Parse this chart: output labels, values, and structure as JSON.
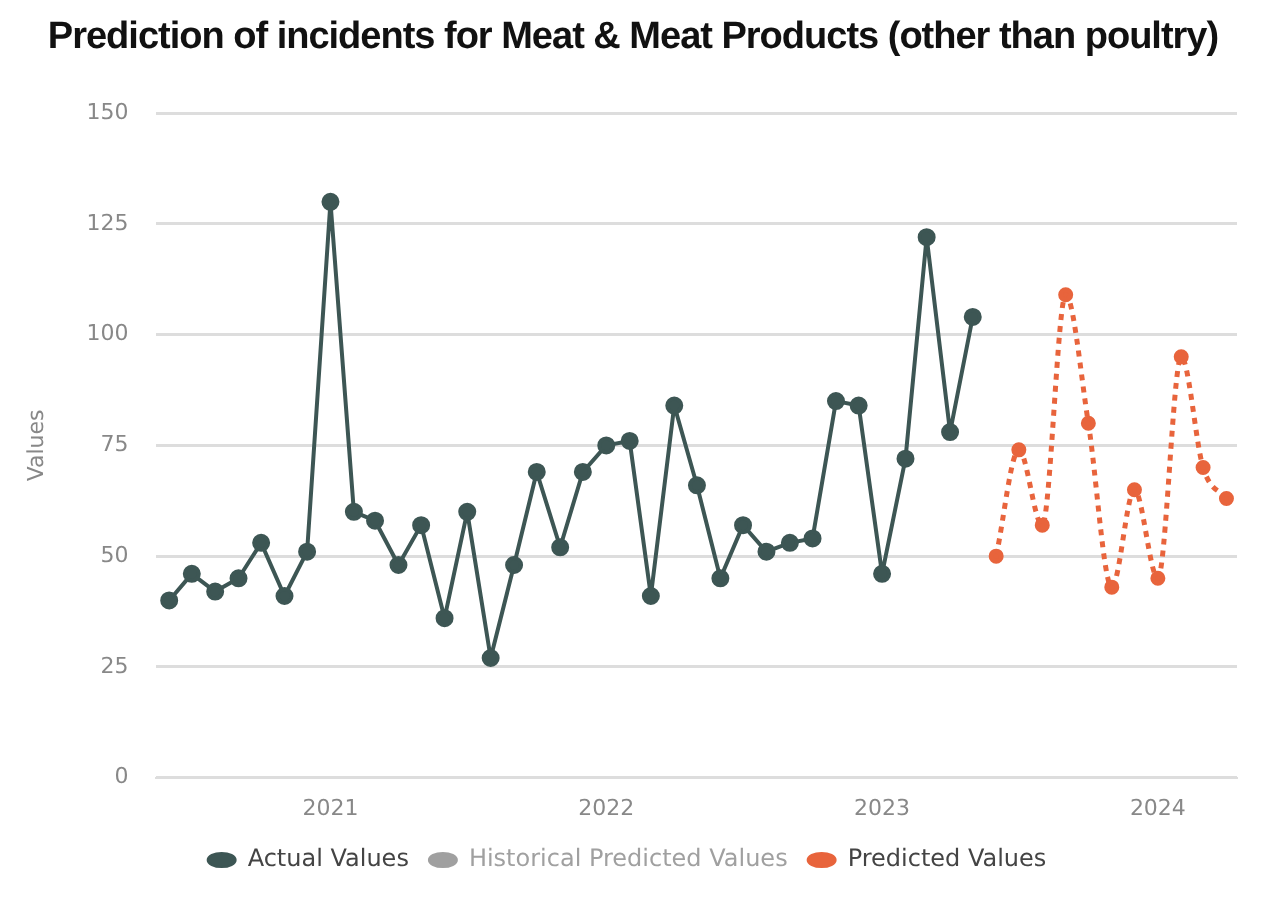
{
  "chart_data": {
    "type": "line",
    "title": "Prediction of incidents for Meat & Meat Products (other than poultry)",
    "ylabel": "Values",
    "xlim": [
      "2020-05-15",
      "2024-04-15"
    ],
    "xticks": [
      "2021",
      "2022",
      "2023",
      "2024"
    ],
    "ylim": [
      0,
      150
    ],
    "yticks": [
      0,
      25,
      50,
      75,
      100,
      125,
      150
    ],
    "grid": "y",
    "legend": "bottom",
    "marker": "circle",
    "series": [
      {
        "name": "Actual Values",
        "color": "#3d5654",
        "line_style": "solid",
        "x": [
          "2020-06",
          "2020-07",
          "2020-08",
          "2020-09",
          "2020-10",
          "2020-11",
          "2020-12",
          "2021-01",
          "2021-02",
          "2021-03",
          "2021-04",
          "2021-05",
          "2021-06",
          "2021-07",
          "2021-08",
          "2021-09",
          "2021-10",
          "2021-11",
          "2021-12",
          "2022-01",
          "2022-02",
          "2022-03",
          "2022-04",
          "2022-05",
          "2022-06",
          "2022-07",
          "2022-08",
          "2022-09",
          "2022-10",
          "2022-11",
          "2022-12",
          "2023-01",
          "2023-02",
          "2023-03",
          "2023-04",
          "2023-05"
        ],
        "values": [
          40,
          46,
          42,
          45,
          53,
          41,
          51,
          130,
          60,
          58,
          48,
          57,
          36,
          60,
          27,
          48,
          69,
          52,
          69,
          75,
          76,
          41,
          84,
          66,
          45,
          57,
          51,
          53,
          54,
          85,
          84,
          46,
          72,
          122,
          78,
          104
        ]
      },
      {
        "name": "Historical Predicted Values",
        "color": "#a0a0a0",
        "line_style": "dashed"
      },
      {
        "name": "Predicted Values",
        "color": "#e8643c",
        "line_style": "dotted",
        "x": [
          "2023-06",
          "2023-07",
          "2023-08",
          "2023-09",
          "2023-10",
          "2023-11",
          "2023-12",
          "2024-01",
          "2024-02",
          "2024-03",
          "2024-04"
        ],
        "values": [
          50,
          74,
          57,
          109,
          80,
          43,
          65,
          45,
          95,
          70,
          63
        ]
      }
    ]
  }
}
